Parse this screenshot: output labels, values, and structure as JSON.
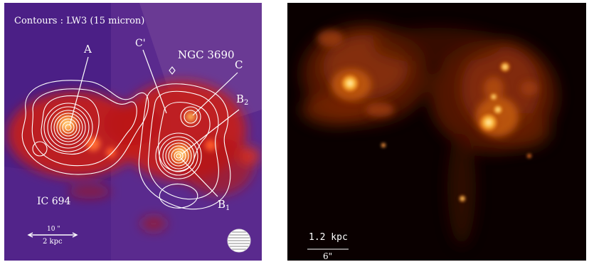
{
  "left_panel": {
    "contour_caption": "Contours : LW3 (15 micron)",
    "labels": {
      "a": "A",
      "c_prime": "C'",
      "ngc": "NGC 3690",
      "c": "C",
      "b2": "B",
      "b2_sub": "2",
      "b1": "B",
      "b1_sub": "1",
      "ic": "IC 694"
    },
    "scale_bar": {
      "angular": "10 \"",
      "physical": "2 kpc"
    }
  },
  "right_panel": {
    "scale_bar": {
      "physical": "1.2 kpc",
      "angular": "6\""
    }
  },
  "colors": {
    "left_background": "#4b1f86",
    "emission_red": "#d8201a",
    "contour": "#ffffff",
    "right_background": "#0a0000",
    "hot_core": "#fff2a0"
  }
}
